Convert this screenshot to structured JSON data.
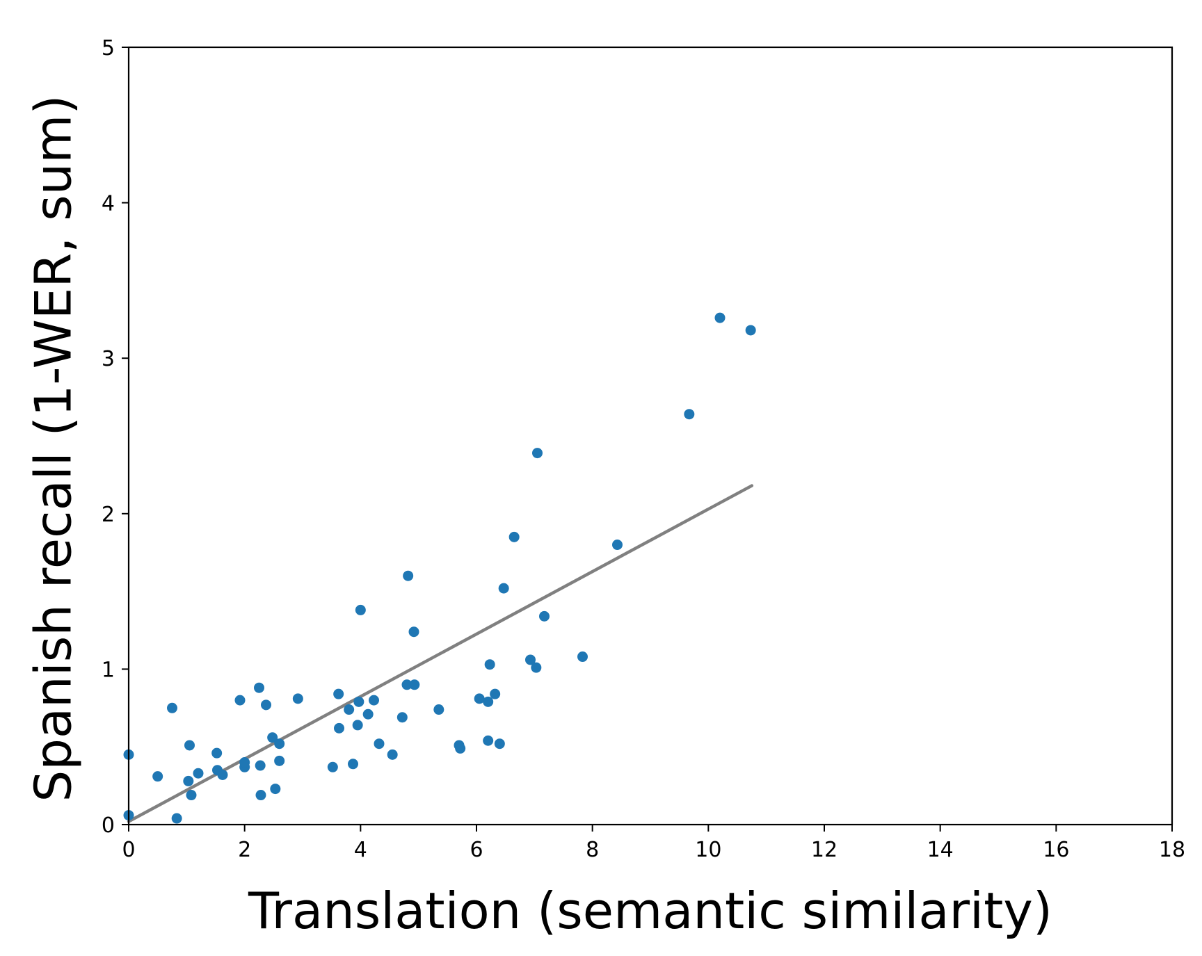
{
  "chart_data": {
    "type": "scatter",
    "title": "",
    "xlabel": "Translation (semantic similarity)",
    "ylabel": "Spanish recall (1-WER, sum)",
    "xlim": [
      0,
      18
    ],
    "ylim": [
      0,
      5
    ],
    "xticks": [
      0,
      2,
      4,
      6,
      8,
      10,
      12,
      14,
      16,
      18
    ],
    "yticks": [
      0,
      1,
      2,
      3,
      4,
      5
    ],
    "grid": false,
    "legend": "none",
    "colors": {
      "points": "#1f77b4",
      "trend": "#808080",
      "axes": "#000000"
    },
    "series": [
      {
        "points": [
          [
            0.0,
            0.45
          ],
          [
            0.0,
            0.06
          ],
          [
            0.5,
            0.31
          ],
          [
            0.75,
            0.75
          ],
          [
            0.83,
            0.04
          ],
          [
            1.03,
            0.28
          ],
          [
            1.05,
            0.51
          ],
          [
            1.08,
            0.19
          ],
          [
            1.2,
            0.33
          ],
          [
            1.52,
            0.46
          ],
          [
            1.53,
            0.35
          ],
          [
            1.62,
            0.32
          ],
          [
            1.92,
            0.8
          ],
          [
            2.0,
            0.37
          ],
          [
            2.0,
            0.4
          ],
          [
            2.25,
            0.88
          ],
          [
            2.27,
            0.38
          ],
          [
            2.28,
            0.19
          ],
          [
            2.37,
            0.77
          ],
          [
            2.48,
            0.56
          ],
          [
            2.53,
            0.23
          ],
          [
            2.6,
            0.41
          ],
          [
            2.6,
            0.52
          ],
          [
            2.92,
            0.81
          ],
          [
            3.52,
            0.37
          ],
          [
            3.62,
            0.84
          ],
          [
            3.63,
            0.62
          ],
          [
            3.8,
            0.74
          ],
          [
            3.87,
            0.39
          ],
          [
            3.95,
            0.64
          ],
          [
            3.97,
            0.79
          ],
          [
            4.0,
            1.38
          ],
          [
            4.13,
            0.71
          ],
          [
            4.23,
            0.8
          ],
          [
            4.32,
            0.52
          ],
          [
            4.55,
            0.45
          ],
          [
            4.72,
            0.69
          ],
          [
            4.8,
            0.9
          ],
          [
            4.82,
            1.6
          ],
          [
            4.92,
            1.24
          ],
          [
            4.93,
            0.9
          ],
          [
            5.35,
            0.74
          ],
          [
            5.7,
            0.51
          ],
          [
            5.72,
            0.49
          ],
          [
            6.05,
            0.81
          ],
          [
            6.2,
            0.79
          ],
          [
            6.2,
            0.54
          ],
          [
            6.23,
            1.03
          ],
          [
            6.32,
            0.84
          ],
          [
            6.4,
            0.52
          ],
          [
            6.47,
            1.52
          ],
          [
            6.65,
            1.85
          ],
          [
            6.93,
            1.06
          ],
          [
            7.03,
            1.01
          ],
          [
            7.05,
            2.39
          ],
          [
            7.17,
            1.34
          ],
          [
            7.83,
            1.08
          ],
          [
            8.43,
            1.8
          ],
          [
            9.67,
            2.64
          ],
          [
            10.2,
            3.26
          ],
          [
            10.73,
            3.18
          ]
        ]
      }
    ],
    "trendline": {
      "x": [
        0.0,
        10.75
      ],
      "y": [
        0.02,
        2.18
      ]
    }
  }
}
